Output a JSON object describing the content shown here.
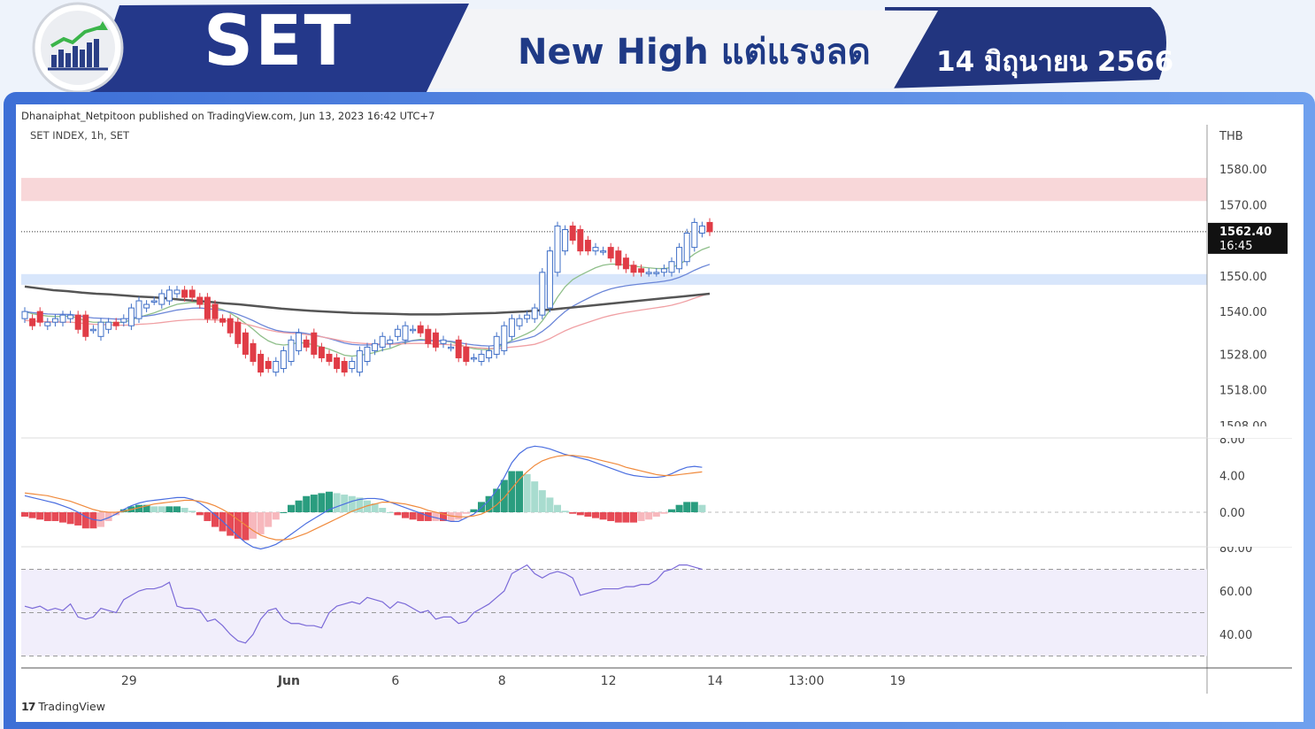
{
  "header": {
    "title": "SET",
    "headline": "New High แต่แรงลด",
    "date": "14 มิถุนายน 2566",
    "logo_icon": "bar-chart-trend-icon"
  },
  "colors": {
    "header_dark": "#22357f",
    "header_light": "#f3f4f7",
    "up_candle": "#3f6fc7",
    "down_candle": "#e03c46",
    "resistance_zone": "#f8d7d9",
    "support_zone": "#d8e6fb",
    "ema_fast": "#8fbf8a",
    "ema_mid": "#6b86d8",
    "ema_slow": "#f0a0a4",
    "ema_long": "#555555",
    "macd": "#4a6ee0",
    "signal": "#f08a3c",
    "rsi": "#7b6ad8"
  },
  "meta": {
    "published": "Dhanaiphat_Netpitoon published on TradingView.com, Jun 13, 2023 16:42 UTC+7",
    "brand": "TradingView",
    "brand_mark": "17"
  },
  "chart_data": {
    "type": "candlestick",
    "symbol_label": "SET INDEX, 1h, SET",
    "currency": "THB",
    "price_ticks": [
      "1580.00",
      "1570.00",
      "1550.00",
      "1540.00",
      "1528.00",
      "1518.00",
      "1508.00"
    ],
    "last_price": {
      "price": "1562.40",
      "time": "16:45"
    },
    "x_ticks": [
      {
        "label": "29",
        "i": 13
      },
      {
        "label": "Jun",
        "i": 34
      },
      {
        "label": "6",
        "i": 48
      },
      {
        "label": "8",
        "i": 62
      },
      {
        "label": "12",
        "i": 76
      },
      {
        "label": "14",
        "i": 90
      },
      {
        "label": "13:00",
        "i": 102
      },
      {
        "label": "19",
        "i": 114
      }
    ],
    "zones": [
      {
        "name": "resistance",
        "low": 1571,
        "high": 1577.5
      },
      {
        "name": "support",
        "low": 1547.5,
        "high": 1550.5
      }
    ],
    "closes": [
      1540,
      1536,
      1537,
      1537,
      1538,
      1539,
      1539,
      1535,
      1533,
      1535,
      1537,
      1537,
      1536,
      1538,
      1541,
      1543,
      1542,
      1543,
      1545,
      1546,
      1546,
      1544,
      1544,
      1542,
      1538,
      1538,
      1537,
      1534,
      1531,
      1528,
      1526,
      1523,
      1524,
      1526,
      1529,
      1532,
      1534,
      1530,
      1528,
      1527,
      1526,
      1524,
      1523,
      1526,
      1529,
      1530,
      1531,
      1533,
      1532,
      1535,
      1536,
      1535,
      1534,
      1531,
      1530,
      1532,
      1530,
      1527,
      1526,
      1527,
      1528,
      1529,
      1533,
      1536,
      1538,
      1538,
      1539,
      1541,
      1551,
      1557,
      1564,
      1563,
      1560,
      1557,
      1557,
      1558,
      1557,
      1555,
      1553,
      1552,
      1551,
      1551,
      1551,
      1551,
      1552,
      1554,
      1558,
      1562,
      1565,
      1564,
      1562.4
    ],
    "opens": [
      1538,
      1540,
      1536,
      1537,
      1537,
      1538,
      1539,
      1539,
      1535,
      1533,
      1535,
      1537,
      1537,
      1536,
      1538,
      1541,
      1543,
      1542,
      1543,
      1545,
      1546,
      1546,
      1544,
      1544,
      1542,
      1538,
      1538,
      1537,
      1534,
      1531,
      1528,
      1526,
      1523,
      1524,
      1526,
      1529,
      1532,
      1534,
      1530,
      1528,
      1527,
      1526,
      1524,
      1523,
      1526,
      1529,
      1530,
      1531,
      1533,
      1532,
      1535,
      1536,
      1535,
      1534,
      1531,
      1530,
      1532,
      1530,
      1527,
      1526,
      1527,
      1528,
      1529,
      1533,
      1536,
      1538,
      1538,
      1539,
      1541,
      1551,
      1557,
      1564,
      1563,
      1560,
      1557,
      1557,
      1558,
      1557,
      1555,
      1553,
      1552,
      1551,
      1551,
      1551,
      1551,
      1552,
      1554,
      1558,
      1562,
      1565,
      1564
    ],
    "ma_200": [
      1547,
      1546.5,
      1546,
      1545.7,
      1545.3,
      1545,
      1544.8,
      1544.5,
      1544.2,
      1544,
      1543.7,
      1543.3,
      1543,
      1542.7,
      1542.3,
      1542,
      1541.6,
      1541.2,
      1540.8,
      1540.5,
      1540.2,
      1540,
      1539.8,
      1539.6,
      1539.5,
      1539.4,
      1539.3,
      1539.2,
      1539.2,
      1539.2,
      1539.3,
      1539.4,
      1539.5,
      1539.6,
      1539.8,
      1540,
      1540.3,
      1540.6,
      1541,
      1541.4,
      1541.8,
      1542.2,
      1542.6,
      1543,
      1543.4,
      1543.8,
      1544.2,
      1544.6,
      1545
    ],
    "macd": [
      1.8,
      1.6,
      1.4,
      1.2,
      1.0,
      0.7,
      0.4,
      0.0,
      -0.5,
      -0.8,
      -0.9,
      -0.6,
      -0.2,
      0.3,
      0.7,
      1.0,
      1.2,
      1.3,
      1.4,
      1.5,
      1.6,
      1.6,
      1.4,
      1.0,
      0.4,
      -0.3,
      -1.0,
      -1.8,
      -2.6,
      -3.3,
      -3.8,
      -4.0,
      -3.8,
      -3.5,
      -3.0,
      -2.4,
      -1.8,
      -1.2,
      -0.7,
      -0.2,
      0.3,
      0.6,
      0.9,
      1.2,
      1.4,
      1.5,
      1.5,
      1.4,
      1.1,
      0.8,
      0.5,
      0.2,
      -0.1,
      -0.4,
      -0.6,
      -0.8,
      -1.0,
      -1.0,
      -0.6,
      -0.2,
      0.5,
      1.3,
      2.4,
      3.8,
      5.4,
      6.4,
      7.0,
      7.2,
      7.1,
      6.9,
      6.6,
      6.3,
      6.1,
      5.9,
      5.7,
      5.4,
      5.1,
      4.8,
      4.5,
      4.2,
      4.0,
      3.9,
      3.8,
      3.8,
      3.9,
      4.2,
      4.6,
      4.9,
      5.0,
      4.9
    ],
    "signal": [
      2.1,
      2.0,
      1.9,
      1.8,
      1.6,
      1.4,
      1.2,
      0.9,
      0.6,
      0.3,
      0.1,
      0.0,
      0.0,
      0.1,
      0.3,
      0.5,
      0.7,
      0.9,
      1.0,
      1.1,
      1.2,
      1.3,
      1.3,
      1.2,
      1.0,
      0.7,
      0.3,
      -0.2,
      -0.8,
      -1.4,
      -2.0,
      -2.5,
      -2.8,
      -3.0,
      -3.0,
      -2.9,
      -2.6,
      -2.3,
      -1.9,
      -1.5,
      -1.1,
      -0.7,
      -0.3,
      0.1,
      0.4,
      0.7,
      0.9,
      1.1,
      1.1,
      1.0,
      0.9,
      0.7,
      0.5,
      0.2,
      0.0,
      -0.2,
      -0.4,
      -0.5,
      -0.5,
      -0.4,
      -0.2,
      0.2,
      0.8,
      1.6,
      2.6,
      3.6,
      4.4,
      5.1,
      5.6,
      5.9,
      6.1,
      6.2,
      6.2,
      6.1,
      6.0,
      5.8,
      5.6,
      5.4,
      5.2,
      4.9,
      4.7,
      4.5,
      4.3,
      4.1,
      4.0,
      4.0,
      4.1,
      4.2,
      4.3,
      4.4
    ],
    "rsi": [
      53,
      52,
      53,
      51,
      52,
      51,
      54,
      48,
      47,
      48,
      52,
      51,
      50,
      56,
      58,
      60,
      61,
      61,
      62,
      64,
      53,
      52,
      52,
      51,
      46,
      47,
      44,
      40,
      37,
      36,
      40,
      47,
      51,
      52,
      47,
      45,
      45,
      44,
      44,
      43,
      50,
      53,
      54,
      55,
      54,
      57,
      56,
      55,
      52,
      55,
      54,
      52,
      50,
      51,
      47,
      48,
      48,
      45,
      46,
      50,
      52,
      54,
      57,
      60,
      68,
      70,
      72,
      68,
      66,
      68,
      69,
      68,
      66,
      58,
      59,
      60,
      61,
      61,
      61,
      62,
      62,
      63,
      63,
      65,
      69,
      70,
      72,
      72,
      71,
      70
    ],
    "rsi_levels": [
      30,
      50,
      70
    ],
    "macd_ticks": [
      "8.00",
      "4.00",
      "0.00"
    ],
    "rsi_ticks": [
      "80.00",
      "60.00",
      "40.00"
    ]
  }
}
